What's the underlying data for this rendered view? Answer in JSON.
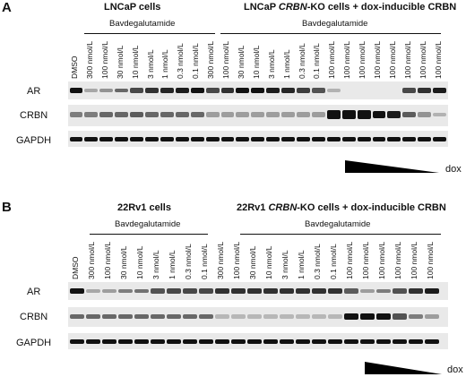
{
  "panels": [
    {
      "letter": "A",
      "left_title": "LNCaP cells",
      "right_title_pre": "LNCaP ",
      "right_title_italic": "CRBN",
      "right_title_post": "-KO cells + dox-inducible CRBN",
      "left_drug": "Bavdegalutamide",
      "right_drug": "Bavdegalutamide",
      "lanes": [
        "DMSO",
        "300 nmol/L",
        "100 nmol/L",
        "30 nmol/L",
        "10 nmol/L",
        "3 nmol/L",
        "1 nmol/L",
        "0.3 nmol/L",
        "0.1 nmol/L",
        "300 nmol/L",
        "100 nmol/L",
        "30 nmol/L",
        "10 nmol/L",
        "3 nmol/L",
        "1 nmol/L",
        "0.3 nmol/L",
        "0.1 nmol/L",
        "100 nmol/L",
        "100 nmol/L",
        "100 nmol/L",
        "100 nmol/L",
        "100 nmol/L",
        "100 nmol/L",
        "100 nmol/L",
        "100 nmol/L"
      ],
      "rows": [
        "AR",
        "CRBN",
        "GAPDH"
      ],
      "intensity": {
        "AR": [
          0.95,
          0.15,
          0.25,
          0.45,
          0.6,
          0.7,
          0.75,
          0.8,
          0.85,
          0.6,
          0.7,
          0.85,
          0.85,
          0.8,
          0.75,
          0.65,
          0.55,
          0.1,
          0.0,
          0.0,
          0.0,
          0.0,
          0.6,
          0.7,
          0.8
        ],
        "CRBN": [
          0.35,
          0.35,
          0.45,
          0.45,
          0.5,
          0.45,
          0.45,
          0.45,
          0.45,
          0.2,
          0.2,
          0.2,
          0.2,
          0.2,
          0.2,
          0.2,
          0.2,
          1.0,
          1.0,
          1.0,
          0.95,
          0.8,
          0.5,
          0.25,
          0.1
        ],
        "GAPDH": [
          0.85,
          0.85,
          0.85,
          0.85,
          0.85,
          0.85,
          0.85,
          0.85,
          0.85,
          0.85,
          0.85,
          0.85,
          0.85,
          0.85,
          0.85,
          0.85,
          0.85,
          0.85,
          0.85,
          0.85,
          0.85,
          0.85,
          0.85,
          0.85,
          0.85
        ]
      },
      "dox_label": "dox"
    },
    {
      "letter": "B",
      "left_title": "22Rv1 cells",
      "right_title_pre": "22Rv1 ",
      "right_title_italic": "CRBN",
      "right_title_post": "-KO cells + dox-inducible CRBN",
      "left_drug": "Bavdegalutamide",
      "right_drug": "Bavdegalutamide",
      "lanes": [
        "DMSO",
        "300 nmol/L",
        "100 nmol/L",
        "30 nmol/L",
        "10 nmol/L",
        "3 nmol/L",
        "1 nmol/L",
        "0.3 nmol/L",
        "0.1 nmol/L",
        "300 nmol/L",
        "100 nmol/L",
        "30 nmol/L",
        "10 nmol/L",
        "3 nmol/L",
        "1 nmol/L",
        "0.3 nmol/L",
        "0.1 nmol/L",
        "100 nmol/L",
        "100 nmol/L",
        "100 nmol/L",
        "100 nmol/L",
        "100 nmol/L",
        "100 nmol/L"
      ],
      "rows": [
        "AR",
        "CRBN",
        "GAPDH"
      ],
      "intensity": {
        "AR": [
          0.85,
          0.15,
          0.2,
          0.35,
          0.4,
          0.55,
          0.6,
          0.6,
          0.6,
          0.7,
          0.7,
          0.7,
          0.7,
          0.7,
          0.7,
          0.7,
          0.7,
          0.5,
          0.2,
          0.35,
          0.55,
          0.7,
          0.8
        ],
        "CRBN": [
          0.45,
          0.45,
          0.45,
          0.45,
          0.45,
          0.45,
          0.45,
          0.45,
          0.45,
          0.08,
          0.08,
          0.08,
          0.08,
          0.08,
          0.08,
          0.08,
          0.08,
          0.9,
          0.95,
          0.85,
          0.55,
          0.35,
          0.2
        ],
        "GAPDH": [
          0.85,
          0.85,
          0.85,
          0.85,
          0.85,
          0.85,
          0.85,
          0.85,
          0.85,
          0.85,
          0.85,
          0.85,
          0.85,
          0.85,
          0.85,
          0.85,
          0.85,
          0.85,
          0.85,
          0.85,
          0.85,
          0.85,
          0.85
        ]
      },
      "dox_label": "dox"
    }
  ]
}
